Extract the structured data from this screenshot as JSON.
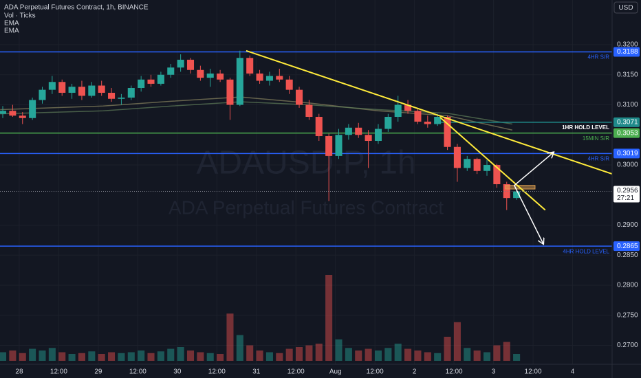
{
  "chart_data": {
    "type": "candlestick",
    "title": "ADA Perpetual Futures Contract, 1h, BINANCE",
    "indicators": [
      "Vol · Ticks",
      "EMA",
      "EMA"
    ],
    "currency": "USD",
    "watermark": [
      "ADAUSD.P, 1h",
      "ADA Perpetual Futures Contract"
    ],
    "x": [
      -5,
      -2,
      1,
      4,
      7,
      10,
      13,
      16,
      19,
      22,
      25,
      28,
      31,
      34,
      37,
      40,
      43,
      46,
      49,
      52,
      55,
      58,
      61,
      64,
      67,
      70,
      73,
      76,
      79,
      82,
      85,
      88,
      91,
      94,
      97,
      100,
      103,
      106,
      109,
      112,
      115,
      118,
      121,
      124,
      127,
      130,
      133,
      136,
      139,
      142,
      145,
      148,
      151
    ],
    "open": [
      0.3085,
      0.309,
      0.3082,
      0.3078,
      0.3108,
      0.3125,
      0.3138,
      0.312,
      0.313,
      0.3115,
      0.3132,
      0.312,
      0.311,
      0.3112,
      0.3128,
      0.3142,
      0.3135,
      0.315,
      0.3162,
      0.3175,
      0.3158,
      0.3145,
      0.3152,
      0.3142,
      0.31,
      0.3178,
      0.3152,
      0.314,
      0.3148,
      0.3142,
      0.3125,
      0.31,
      0.308,
      0.3048,
      0.3015,
      0.305,
      0.3062,
      0.305,
      0.304,
      0.306,
      0.308,
      0.31,
      0.309,
      0.3072,
      0.3068,
      0.308,
      0.303,
      0.2995,
      0.301,
      0.299,
      0.3,
      0.2968,
      0.2945
    ],
    "high": [
      0.3098,
      0.31,
      0.3088,
      0.3112,
      0.313,
      0.3148,
      0.3142,
      0.3135,
      0.314,
      0.3138,
      0.314,
      0.3128,
      0.3118,
      0.3132,
      0.3148,
      0.315,
      0.3155,
      0.3168,
      0.3184,
      0.3178,
      0.3165,
      0.316,
      0.3158,
      0.3145,
      0.319,
      0.3182,
      0.3158,
      0.3155,
      0.316,
      0.3148,
      0.313,
      0.3108,
      0.3085,
      0.3052,
      0.306,
      0.3068,
      0.307,
      0.3058,
      0.3068,
      0.3085,
      0.3115,
      0.3108,
      0.3095,
      0.3082,
      0.3085,
      0.3082,
      0.3035,
      0.3015,
      0.3012,
      0.3008,
      0.3002,
      0.2972,
      0.2962
    ],
    "low": [
      0.3078,
      0.308,
      0.3068,
      0.3075,
      0.3102,
      0.3118,
      0.3115,
      0.311,
      0.3108,
      0.3112,
      0.3115,
      0.3105,
      0.31,
      0.3108,
      0.3122,
      0.313,
      0.3132,
      0.3145,
      0.3155,
      0.3152,
      0.314,
      0.313,
      0.3138,
      0.3075,
      0.3098,
      0.3148,
      0.3135,
      0.3132,
      0.3138,
      0.3118,
      0.3095,
      0.3075,
      0.304,
      0.294,
      0.301,
      0.3042,
      0.3045,
      0.2995,
      0.3035,
      0.3055,
      0.3072,
      0.3085,
      0.3068,
      0.3062,
      0.3065,
      0.3025,
      0.2972,
      0.299,
      0.2985,
      0.2982,
      0.2962,
      0.2925,
      0.2942
    ],
    "close": [
      0.309,
      0.3082,
      0.3078,
      0.3108,
      0.3125,
      0.3138,
      0.312,
      0.313,
      0.3115,
      0.3132,
      0.312,
      0.311,
      0.3112,
      0.3128,
      0.3142,
      0.3135,
      0.315,
      0.3162,
      0.3175,
      0.3158,
      0.3145,
      0.3152,
      0.3142,
      0.31,
      0.3178,
      0.3152,
      0.314,
      0.3148,
      0.3142,
      0.3125,
      0.31,
      0.308,
      0.3048,
      0.3015,
      0.305,
      0.3062,
      0.305,
      0.304,
      0.306,
      0.308,
      0.31,
      0.309,
      0.3072,
      0.3068,
      0.308,
      0.303,
      0.2995,
      0.301,
      0.299,
      0.3,
      0.2968,
      0.2945,
      0.2956
    ],
    "volume": [
      10,
      12,
      9,
      14,
      12,
      15,
      10,
      8,
      9,
      11,
      8,
      10,
      9,
      10,
      12,
      9,
      11,
      14,
      16,
      12,
      10,
      9,
      8,
      55,
      30,
      18,
      12,
      10,
      9,
      14,
      16,
      18,
      20,
      100,
      25,
      15,
      12,
      14,
      12,
      15,
      20,
      14,
      12,
      10,
      9,
      28,
      45,
      15,
      12,
      10,
      18,
      22,
      8
    ],
    "vlim": [
      0,
      100
    ],
    "up_color": "#26a69a",
    "down_color": "#ef5350",
    "xlim": [
      -5.84,
      180
    ],
    "xticks": [
      {
        "value": 0,
        "label": "28"
      },
      {
        "value": 12,
        "label": "12:00"
      },
      {
        "value": 24,
        "label": "29"
      },
      {
        "value": 36,
        "label": "12:00"
      },
      {
        "value": 48,
        "label": "30"
      },
      {
        "value": 60,
        "label": "12:00"
      },
      {
        "value": 72,
        "label": "31"
      },
      {
        "value": 84,
        "label": "12:00"
      },
      {
        "value": 96,
        "label": "Aug"
      },
      {
        "value": 108,
        "label": "12:00"
      },
      {
        "value": 120,
        "label": "2"
      },
      {
        "value": 132,
        "label": "12:00"
      },
      {
        "value": 144,
        "label": "3"
      },
      {
        "value": 156,
        "label": "12:00"
      },
      {
        "value": 168,
        "label": "4"
      }
    ],
    "ylim": [
      0.26686,
      0.32743
    ],
    "yticks": [
      {
        "value": 0.32,
        "label": "0.3200"
      },
      {
        "value": 0.315,
        "label": "0.3150"
      },
      {
        "value": 0.31,
        "label": "0.3100"
      },
      {
        "value": 0.3,
        "label": "0.3000"
      },
      {
        "value": 0.29,
        "label": "0.2900"
      },
      {
        "value": 0.285,
        "label": "0.2850"
      },
      {
        "value": 0.28,
        "label": "0.2800"
      },
      {
        "value": 0.275,
        "label": "0.2750"
      },
      {
        "value": 0.27,
        "label": "0.2700"
      }
    ],
    "grid": true,
    "ema": [
      {
        "name": "EMA",
        "color": "#8a8660",
        "x": [
          -5.8,
          25.5,
          46.3,
          67.2,
          88.1,
          109,
          129.9,
          149.7
        ],
        "values": [
          0.3092,
          0.3098,
          0.3106,
          0.3113,
          0.3103,
          0.309,
          0.3082,
          0.3058
        ]
      },
      {
        "name": "EMA",
        "color": "#5f7d58",
        "x": [
          -5.8,
          25.5,
          46.3,
          67.2,
          88.1,
          109,
          129.9,
          149.7
        ],
        "values": [
          0.3085,
          0.309,
          0.3098,
          0.3105,
          0.31,
          0.3092,
          0.3086,
          0.3068
        ]
      }
    ],
    "levels": [
      {
        "value": 0.3188,
        "value_label": "0.3188",
        "label": "4HR S/R",
        "color": "#2962ff",
        "start": -5.84
      },
      {
        "value": 0.3071,
        "value_label": "0.3071",
        "label": "1HR HOLD LEVEL",
        "color": "#1f8a8a",
        "start": 127.8
      },
      {
        "value": 0.3053,
        "value_label": "0.3053",
        "label": "15MIN S/R",
        "color": "#4caf50",
        "start": -5.84
      },
      {
        "value": 0.3019,
        "value_label": "0.3019",
        "label": "4HR S/R",
        "color": "#2962ff",
        "start": -5.84
      },
      {
        "value": 0.2865,
        "value_label": "0.2865",
        "label": "4HR HOLD LEVEL",
        "color": "#2962ff",
        "start": -5.84
      }
    ],
    "last_price": {
      "value": 0.2956,
      "label": "0.2956",
      "countdown": "27:21"
    },
    "trendlines": [
      {
        "color": "#ffeb3b",
        "x": [
          68.9,
          180
        ],
        "values": [
          0.319,
          0.29851
        ]
      },
      {
        "color": "#ffeb3b",
        "x": [
          127.8,
          159.7
        ],
        "values": [
          0.3079,
          0.2925
        ]
      }
    ],
    "arrows": [
      {
        "color": "#ffffff",
        "x": [
          150.3,
          162.2
        ],
        "values": [
          0.2966,
          0.3021
        ]
      },
      {
        "color": "#ffffff",
        "x": [
          150.3,
          159.1
        ],
        "values": [
          0.2966,
          0.2869
        ]
      }
    ],
    "box": {
      "color": "#e0a050",
      "x": [
        147.6,
        156.6
      ],
      "values": [
        0.2966,
        0.296
      ]
    }
  }
}
